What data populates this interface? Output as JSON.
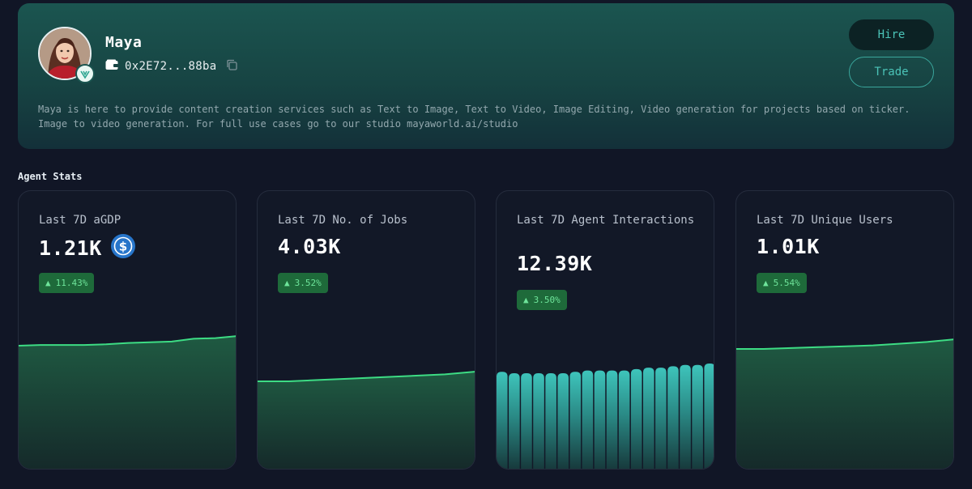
{
  "profile": {
    "name": "Maya",
    "wallet_address": "0x2E72...88ba",
    "description": "Maya is here to provide content creation services such as Text to Image, Text to Video, Image Editing, Video generation for projects based on ticker. Image to video generation. For full use cases go to our studio mayaworld.ai/studio",
    "hire_label": "Hire",
    "trade_label": "Trade"
  },
  "section_title": "Agent Stats",
  "colors": {
    "accent": "#4bc3b7",
    "positive": "#6ee49a",
    "chart_line": "#3ddc84",
    "bar": "#3ec4bb"
  },
  "stats": [
    {
      "label": "Last 7D aGDP",
      "value": "1.21K",
      "change": "11.43%",
      "currency_icon": "usdc-icon",
      "chart_data": {
        "type": "area",
        "values": [
          1.0,
          1.01,
          1.01,
          1.01,
          1.02,
          1.04,
          1.05,
          1.06,
          1.1,
          1.11,
          1.14
        ]
      }
    },
    {
      "label": "Last 7D No. of Jobs",
      "value": "4.03K",
      "change": "3.52%",
      "chart_data": {
        "type": "area",
        "values": [
          1.0,
          1.0,
          1.005,
          1.01,
          1.015,
          1.02,
          1.025,
          1.035
        ]
      }
    },
    {
      "label": "Last 7D Agent Interactions",
      "value": "12.39K",
      "change": "3.50%",
      "chart_data": {
        "type": "bar",
        "values": [
          1.005,
          1.0,
          1.0,
          1.0,
          1.0,
          1.0,
          1.005,
          1.01,
          1.01,
          1.01,
          1.01,
          1.015,
          1.02,
          1.02,
          1.025,
          1.03,
          1.03,
          1.035
        ]
      }
    },
    {
      "label": "Last 7D Unique Users",
      "value": "1.01K",
      "change": "5.54%",
      "chart_data": {
        "type": "area",
        "values": [
          1.0,
          1.0,
          1.005,
          1.01,
          1.015,
          1.02,
          1.03,
          1.04,
          1.055
        ]
      }
    }
  ]
}
